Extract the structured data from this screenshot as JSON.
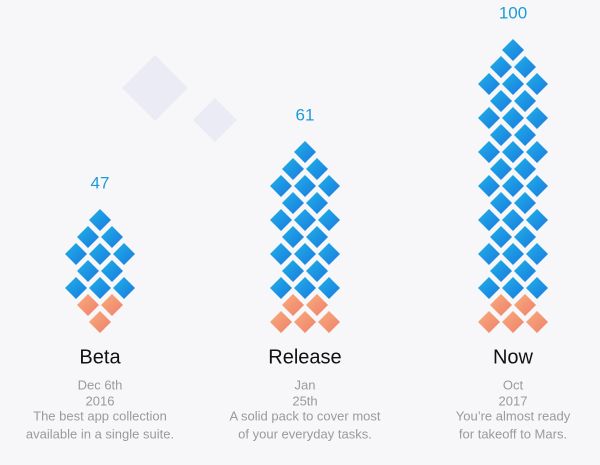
{
  "columns": [
    {
      "value": 47,
      "title": "Beta",
      "date": [
        "Dec 6th",
        "2016"
      ],
      "description": [
        "The best app collection",
        "available in a single suite."
      ]
    },
    {
      "value": 61,
      "title": "Release",
      "date": [
        "Jan",
        "25th"
      ],
      "description": [
        "A solid pack to cover most",
        "of your everyday tasks."
      ]
    },
    {
      "value": 100,
      "title": "Now",
      "date": [
        "Oct",
        "2017"
      ],
      "description": [
        "You’re almost ready",
        "for takeoff to Mars."
      ]
    }
  ]
}
